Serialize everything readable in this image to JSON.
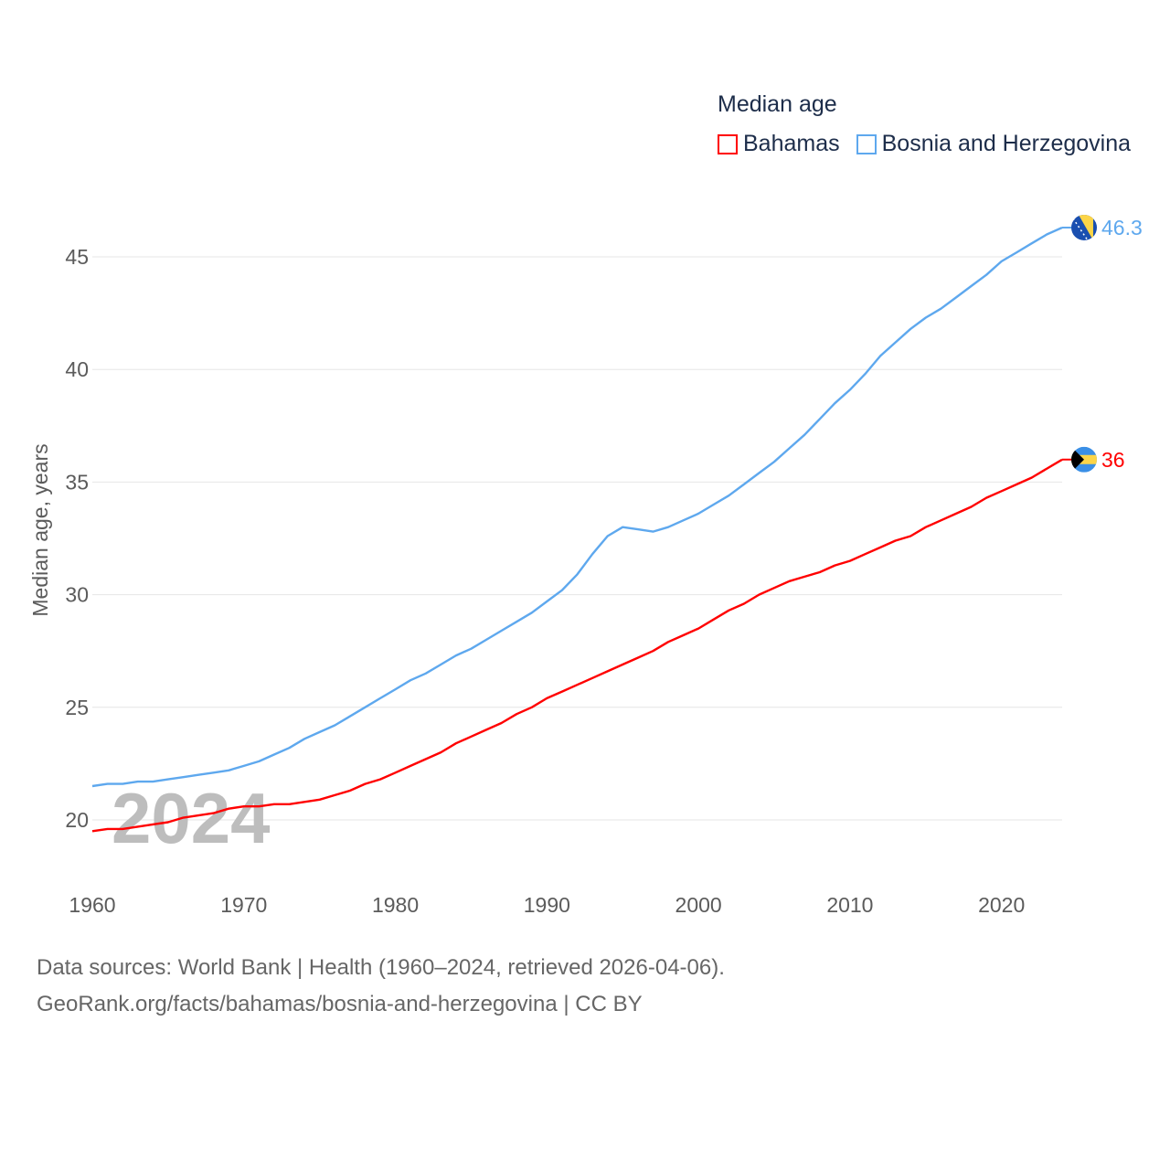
{
  "chart_data": {
    "type": "line",
    "title": "Median age",
    "xlabel": "",
    "ylabel": "Median age, years",
    "xlim": [
      1960,
      2024
    ],
    "ylim": [
      18.5,
      47
    ],
    "yticks": [
      20,
      25,
      30,
      35,
      40,
      45
    ],
    "xticks": [
      1960,
      1970,
      1980,
      1990,
      2000,
      2010,
      2020
    ],
    "grid": true,
    "legend_placement": "top-right",
    "year_watermark": "2024",
    "x": [
      1960,
      1961,
      1962,
      1963,
      1964,
      1965,
      1966,
      1967,
      1968,
      1969,
      1970,
      1971,
      1972,
      1973,
      1974,
      1975,
      1976,
      1977,
      1978,
      1979,
      1980,
      1981,
      1982,
      1983,
      1984,
      1985,
      1986,
      1987,
      1988,
      1989,
      1990,
      1991,
      1992,
      1993,
      1994,
      1995,
      1996,
      1997,
      1998,
      1999,
      2000,
      2001,
      2002,
      2003,
      2004,
      2005,
      2006,
      2007,
      2008,
      2009,
      2010,
      2011,
      2012,
      2013,
      2014,
      2015,
      2016,
      2017,
      2018,
      2019,
      2020,
      2021,
      2022,
      2023,
      2024
    ],
    "series": [
      {
        "name": "Bahamas",
        "color": "#ff0000",
        "end_label": "36",
        "values": [
          19.5,
          19.6,
          19.6,
          19.7,
          19.8,
          19.9,
          20.1,
          20.2,
          20.3,
          20.5,
          20.6,
          20.6,
          20.7,
          20.7,
          20.8,
          20.9,
          21.1,
          21.3,
          21.6,
          21.8,
          22.1,
          22.4,
          22.7,
          23.0,
          23.4,
          23.7,
          24.0,
          24.3,
          24.7,
          25.0,
          25.4,
          25.7,
          26.0,
          26.3,
          26.6,
          26.9,
          27.2,
          27.5,
          27.9,
          28.2,
          28.5,
          28.9,
          29.3,
          29.6,
          30.0,
          30.3,
          30.6,
          30.8,
          31.0,
          31.3,
          31.5,
          31.8,
          32.1,
          32.4,
          32.6,
          33.0,
          33.3,
          33.6,
          33.9,
          34.3,
          34.6,
          34.9,
          35.2,
          35.6,
          36.0
        ]
      },
      {
        "name": "Bosnia and Herzegovina",
        "color": "#5ea8ee",
        "end_label": "46.3",
        "values": [
          21.5,
          21.6,
          21.6,
          21.7,
          21.7,
          21.8,
          21.9,
          22.0,
          22.1,
          22.2,
          22.4,
          22.6,
          22.9,
          23.2,
          23.6,
          23.9,
          24.2,
          24.6,
          25.0,
          25.4,
          25.8,
          26.2,
          26.5,
          26.9,
          27.3,
          27.6,
          28.0,
          28.4,
          28.8,
          29.2,
          29.7,
          30.2,
          30.9,
          31.8,
          32.6,
          33.0,
          32.9,
          32.8,
          33.0,
          33.3,
          33.6,
          34.0,
          34.4,
          34.9,
          35.4,
          35.9,
          36.5,
          37.1,
          37.8,
          38.5,
          39.1,
          39.8,
          40.6,
          41.2,
          41.8,
          42.3,
          42.7,
          43.2,
          43.7,
          44.2,
          44.8,
          45.2,
          45.6,
          46.0,
          46.3
        ]
      }
    ]
  },
  "footer": {
    "line1": "Data sources: World Bank | Health (1960–2024, retrieved 2026-04-06).",
    "line2": "GeoRank.org/facts/bahamas/bosnia-and-herzegovina | CC BY"
  }
}
